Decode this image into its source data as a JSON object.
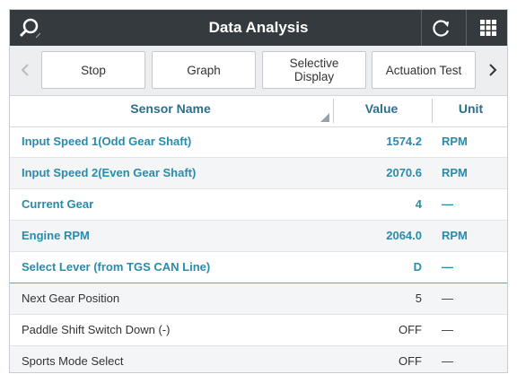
{
  "header": {
    "title": "Data Analysis"
  },
  "toolbar": {
    "buttons": [
      "Stop",
      "Graph",
      "Selective Display",
      "Actuation Test"
    ]
  },
  "table": {
    "columns": [
      "Sensor Name",
      "Value",
      "Unit"
    ],
    "rows": [
      [
        "Input Speed 1(Odd Gear Shaft)",
        "1574.2",
        "RPM"
      ],
      [
        "Input Speed 2(Even Gear Shaft)",
        "2070.6",
        "RPM"
      ],
      [
        "Current Gear",
        "4",
        "—"
      ],
      [
        "Engine RPM",
        "2064.0",
        "RPM"
      ],
      [
        "Select Lever (from TGS CAN Line)",
        "D",
        "—"
      ],
      [
        "Next Gear Position",
        "5",
        "—"
      ],
      [
        "Paddle Shift Switch Down (-)",
        "OFF",
        "—"
      ],
      [
        "Sports Mode Select",
        "OFF",
        "—"
      ]
    ]
  }
}
